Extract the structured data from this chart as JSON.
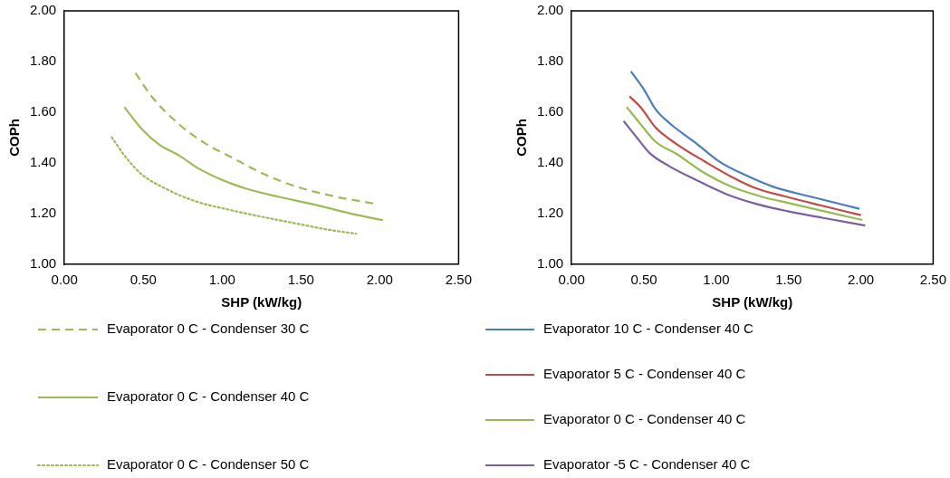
{
  "chart_data": [
    {
      "type": "line",
      "xlabel": "SHP (kW/kg)",
      "ylabel": "COPh",
      "xlim": [
        0,
        2.5
      ],
      "ylim": [
        1,
        2
      ],
      "grid": false,
      "legend": "bottom",
      "marker": "none",
      "xticks": [
        {
          "value": 0,
          "label": "0.00"
        },
        {
          "value": 0.5,
          "label": "0.50"
        },
        {
          "value": 1,
          "label": "1.00"
        },
        {
          "value": 1.5,
          "label": "1.50"
        },
        {
          "value": 2,
          "label": "2.00"
        },
        {
          "value": 2.5,
          "label": "2.50"
        }
      ],
      "yticks": [
        {
          "value": 1,
          "label": "1.00"
        },
        {
          "value": 1.2,
          "label": "1.20"
        },
        {
          "value": 1.4,
          "label": "1.40"
        },
        {
          "value": 1.6,
          "label": "1.60"
        },
        {
          "value": 1.8,
          "label": "1.80"
        },
        {
          "value": 2,
          "label": "2.00"
        }
      ],
      "series": [
        {
          "name": "Evaporator 0 C - Condenser 30 C",
          "color": "#9bbb59",
          "line_style": "dashed",
          "x": [
            0.45,
            0.56,
            0.73,
            0.89,
            1.06,
            1.27,
            1.48,
            1.73,
            1.96
          ],
          "values": [
            1.755,
            1.657,
            1.551,
            1.478,
            1.422,
            1.355,
            1.305,
            1.266,
            1.24
          ]
        },
        {
          "name": "Evaporator 0 C - Condenser 40 C",
          "color": "#9bbb59",
          "line_style": "solid",
          "x": [
            0.38,
            0.49,
            0.6,
            0.73,
            0.85,
            1.0,
            1.15,
            1.36,
            1.57,
            1.84,
            2.02
          ],
          "values": [
            1.62,
            1.534,
            1.473,
            1.428,
            1.378,
            1.333,
            1.299,
            1.266,
            1.238,
            1.197,
            1.174
          ]
        },
        {
          "name": "Evaporator 0 C - Condenser 50 C",
          "color": "#9bbb59",
          "line_style": "dotted",
          "x": [
            0.3,
            0.39,
            0.49,
            0.64,
            0.83,
            1.04,
            1.25,
            1.48,
            1.67,
            1.85
          ],
          "values": [
            1.501,
            1.422,
            1.355,
            1.299,
            1.249,
            1.216,
            1.188,
            1.16,
            1.137,
            1.121
          ]
        }
      ]
    },
    {
      "type": "line",
      "xlabel": "SHP (kW/kg)",
      "ylabel": "COPh",
      "xlim": [
        0,
        2.5
      ],
      "ylim": [
        1,
        2
      ],
      "grid": false,
      "legend": "bottom",
      "marker": "none",
      "line_style": "solid",
      "xticks": [
        {
          "value": 0,
          "label": "0.00"
        },
        {
          "value": 0.5,
          "label": "0.50"
        },
        {
          "value": 1,
          "label": "1.00"
        },
        {
          "value": 1.5,
          "label": "1.50"
        },
        {
          "value": 2,
          "label": "2.00"
        },
        {
          "value": 2.5,
          "label": "2.50"
        }
      ],
      "yticks": [
        {
          "value": 1,
          "label": "1.00"
        },
        {
          "value": 1.2,
          "label": "1.20"
        },
        {
          "value": 1.4,
          "label": "1.40"
        },
        {
          "value": 1.6,
          "label": "1.60"
        },
        {
          "value": 1.8,
          "label": "1.80"
        },
        {
          "value": 2,
          "label": "2.00"
        }
      ],
      "series": [
        {
          "name": "Evaporator 10 C - Condenser 40 C",
          "color": "#4a7ebb",
          "x": [
            0.41,
            0.5,
            0.58,
            0.69,
            0.86,
            1.02,
            1.19,
            1.4,
            1.66,
            1.99
          ],
          "values": [
            1.761,
            1.69,
            1.612,
            1.551,
            1.478,
            1.406,
            1.355,
            1.305,
            1.266,
            1.219
          ]
        },
        {
          "name": "Evaporator 5 C - Condenser 40 C",
          "color": "#be4b48",
          "x": [
            0.4,
            0.48,
            0.58,
            0.73,
            0.92,
            1.11,
            1.28,
            1.49,
            1.72,
            2.0
          ],
          "values": [
            1.663,
            1.618,
            1.54,
            1.473,
            1.406,
            1.344,
            1.299,
            1.266,
            1.233,
            1.194
          ]
        },
        {
          "name": "Evaporator 0 C - Condenser 40 C",
          "color": "#98b954",
          "x": [
            0.38,
            0.48,
            0.58,
            0.73,
            0.9,
            1.11,
            1.32,
            1.53,
            1.78,
            2.01
          ],
          "values": [
            1.621,
            1.551,
            1.484,
            1.434,
            1.367,
            1.305,
            1.266,
            1.238,
            1.205,
            1.175
          ]
        },
        {
          "name": "Evaporator -5 C - Condenser 40 C",
          "color": "#7d60a0",
          "x": [
            0.36,
            0.45,
            0.54,
            0.67,
            0.86,
            1.07,
            1.28,
            1.49,
            1.74,
            2.03
          ],
          "values": [
            1.565,
            1.501,
            1.439,
            1.389,
            1.333,
            1.277,
            1.238,
            1.21,
            1.183,
            1.153
          ]
        }
      ]
    }
  ]
}
